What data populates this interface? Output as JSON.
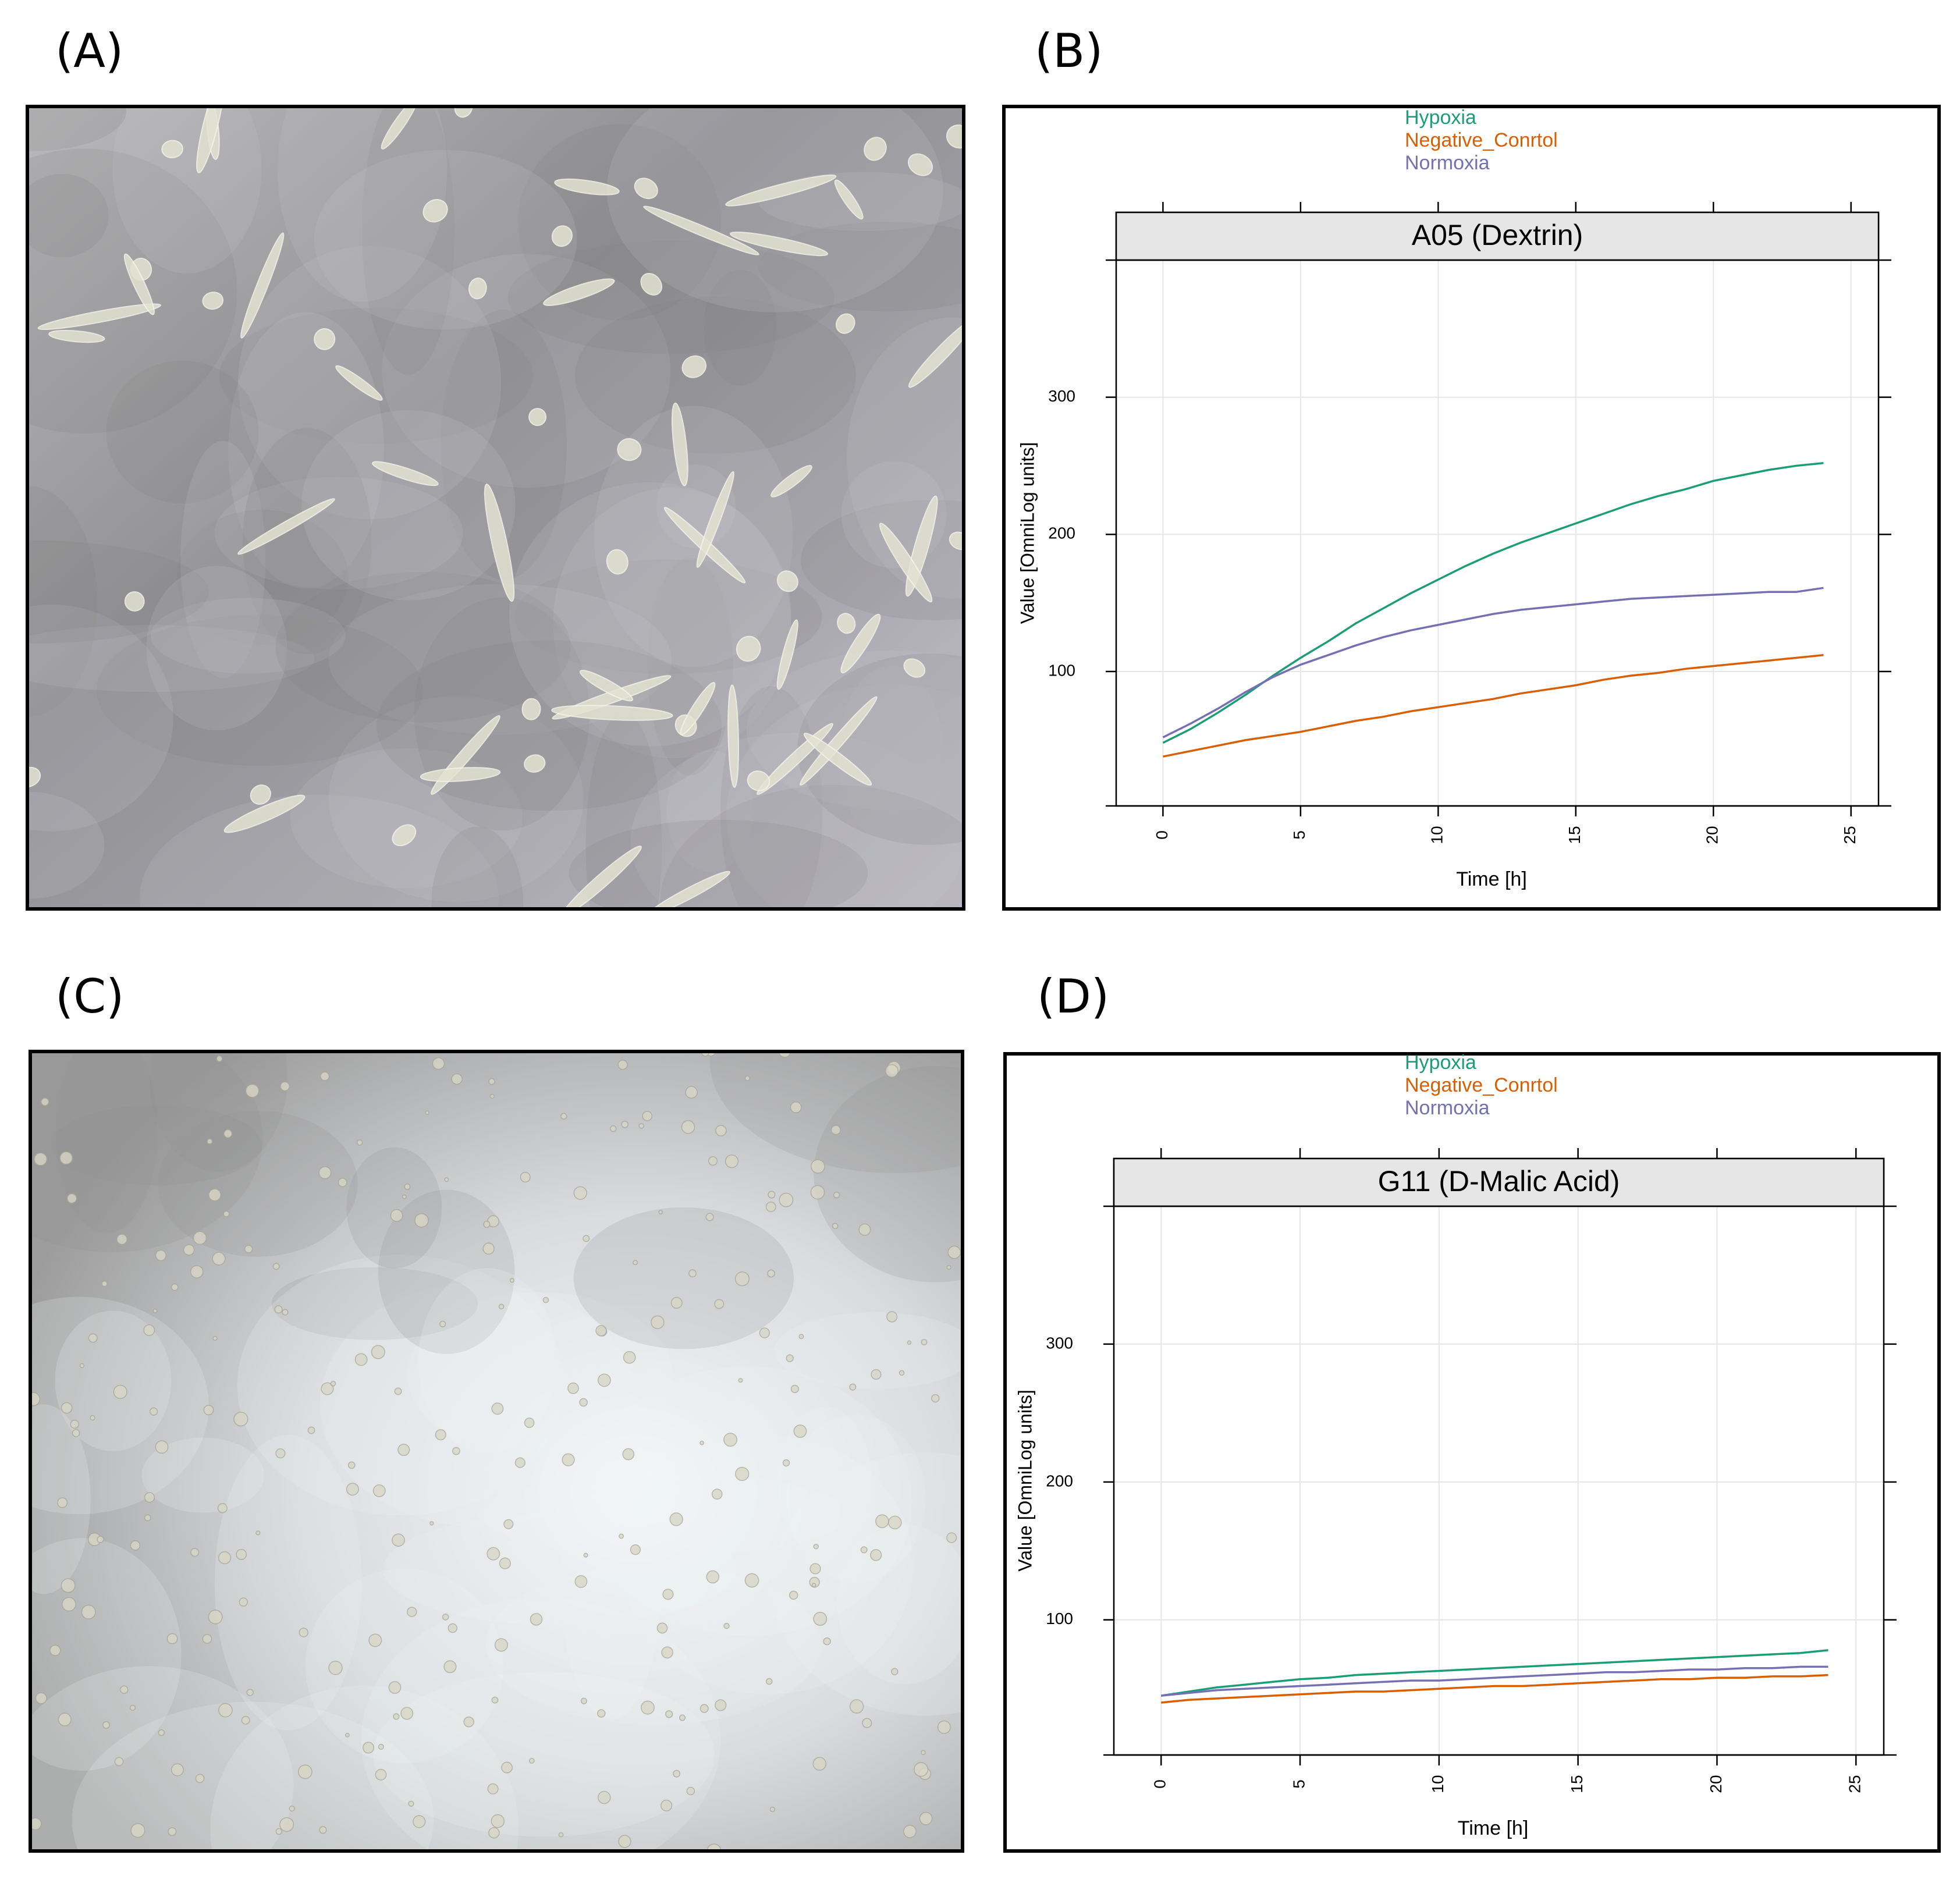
{
  "panel_labels": [
    "(A)",
    "(B)",
    "(C)",
    "(D)"
  ],
  "chart_data": [
    {
      "type": "line",
      "title": "A05 (Dextrin)",
      "xlabel": "Time [h]",
      "ylabel": "Value [OmniLog units]",
      "x": [
        0,
        1,
        2,
        3,
        4,
        5,
        6,
        7,
        8,
        9,
        10,
        11,
        12,
        13,
        14,
        15,
        16,
        17,
        18,
        19,
        20,
        21,
        22,
        23,
        24
      ],
      "series": [
        {
          "name": "Hypoxia",
          "color": "#1b9e77",
          "values": [
            48,
            58,
            70,
            83,
            97,
            110,
            122,
            135,
            146,
            157,
            167,
            177,
            186,
            194,
            201,
            208,
            215,
            222,
            228,
            233,
            239,
            243,
            247,
            250,
            252
          ]
        },
        {
          "name": "Negative_Conrtol",
          "color": "#d95f02",
          "values": [
            38,
            42,
            46,
            50,
            53,
            56,
            60,
            64,
            67,
            71,
            74,
            77,
            80,
            84,
            87,
            90,
            94,
            97,
            99,
            102,
            104,
            106,
            108,
            110,
            112
          ]
        },
        {
          "name": "Normoxia",
          "color": "#7570b3",
          "values": [
            52,
            62,
            73,
            85,
            96,
            105,
            112,
            119,
            125,
            130,
            134,
            138,
            142,
            145,
            147,
            149,
            151,
            153,
            154,
            155,
            156,
            157,
            158,
            158,
            161
          ]
        }
      ],
      "xlim": [
        -1.7,
        26
      ],
      "ylim": [
        2,
        400
      ],
      "xticks": [
        0,
        5,
        10,
        15,
        20,
        25
      ],
      "yticks": [
        100,
        200,
        300
      ],
      "grid": true
    },
    {
      "type": "line",
      "title": "G11 (D-Malic Acid)",
      "xlabel": "Time [h]",
      "ylabel": "Value [OmniLog units]",
      "x": [
        0,
        1,
        2,
        3,
        4,
        5,
        6,
        7,
        8,
        9,
        10,
        11,
        12,
        13,
        14,
        15,
        16,
        17,
        18,
        19,
        20,
        21,
        22,
        23,
        24
      ],
      "series": [
        {
          "name": "Hypoxia",
          "color": "#1b9e77",
          "values": [
            45,
            48,
            51,
            53,
            55,
            57,
            58,
            60,
            61,
            62,
            63,
            64,
            65,
            66,
            67,
            68,
            69,
            70,
            71,
            72,
            73,
            74,
            75,
            76,
            78
          ]
        },
        {
          "name": "Negative_Conrtol",
          "color": "#d95f02",
          "values": [
            40,
            42,
            43,
            44,
            45,
            46,
            47,
            48,
            48,
            49,
            50,
            51,
            52,
            52,
            53,
            54,
            55,
            56,
            57,
            57,
            58,
            58,
            59,
            59,
            60
          ]
        },
        {
          "name": "Normoxia",
          "color": "#7570b3",
          "values": [
            45,
            47,
            49,
            50,
            51,
            52,
            53,
            54,
            55,
            56,
            56,
            57,
            58,
            59,
            60,
            61,
            62,
            62,
            63,
            64,
            64,
            65,
            65,
            66,
            66
          ]
        }
      ],
      "xlim": [
        -1.7,
        26
      ],
      "ylim": [
        2,
        400
      ],
      "xticks": [
        0,
        5,
        10,
        15,
        20,
        25
      ],
      "yticks": [
        100,
        200,
        300
      ],
      "grid": true
    }
  ]
}
